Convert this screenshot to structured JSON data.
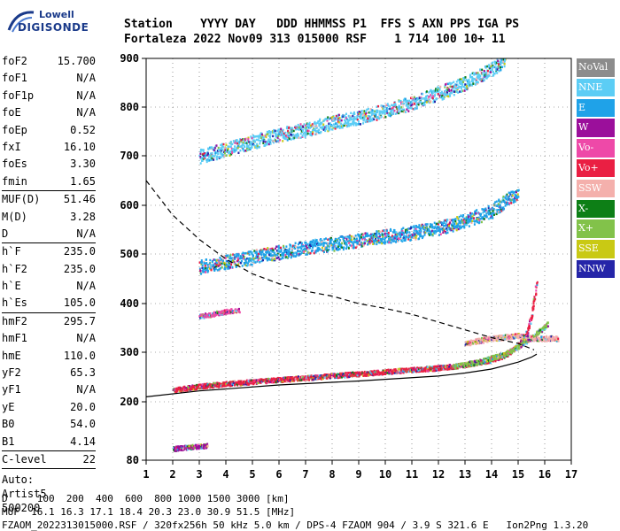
{
  "logo": {
    "line1": "Lowell",
    "line2": "DIGISONDE"
  },
  "header": {
    "line1": "Station    YYYY DAY   DDD HHMMSS P1  FFS S AXN PPS IGA PS",
    "line2": "Fortaleza 2022 Nov09 313 015000 RSF    1 714 100 10+ 11"
  },
  "params": {
    "group1": [
      {
        "name": "foF2",
        "value": "15.700"
      },
      {
        "name": "foF1",
        "value": "N/A"
      },
      {
        "name": "foF1p",
        "value": "N/A"
      },
      {
        "name": "foE",
        "value": "N/A"
      },
      {
        "name": "foEp",
        "value": "0.52"
      },
      {
        "name": "fxI",
        "value": "16.10"
      },
      {
        "name": "foEs",
        "value": "3.30"
      },
      {
        "name": "fmin",
        "value": "1.65"
      }
    ],
    "group2": [
      {
        "name": "MUF(D)",
        "value": "51.46"
      },
      {
        "name": "M(D)",
        "value": "3.28"
      },
      {
        "name": "D",
        "value": "N/A"
      }
    ],
    "group3": [
      {
        "name": "h`F",
        "value": "235.0"
      },
      {
        "name": "h`F2",
        "value": "235.0"
      },
      {
        "name": "h`E",
        "value": "N/A"
      },
      {
        "name": "h`Es",
        "value": "105.0"
      }
    ],
    "group4": [
      {
        "name": "hmF2",
        "value": "295.7"
      },
      {
        "name": "hmF1",
        "value": "N/A"
      },
      {
        "name": "hmE",
        "value": "110.0"
      },
      {
        "name": "yF2",
        "value": "65.3"
      },
      {
        "name": "yF1",
        "value": "N/A"
      },
      {
        "name": "yE",
        "value": "20.0"
      },
      {
        "name": "B0",
        "value": "54.0"
      },
      {
        "name": "B1",
        "value": "4.14"
      }
    ],
    "group5": [
      {
        "name": "C-level",
        "value": "22"
      }
    ],
    "autoscaling": [
      "Auto:",
      "Artist5",
      "500200"
    ]
  },
  "legend": [
    {
      "label": "NoVal",
      "color": "#8c8c8c"
    },
    {
      "label": "NNE",
      "color": "#5ccdf5"
    },
    {
      "label": "E",
      "color": "#1fa2e8"
    },
    {
      "label": "W",
      "color": "#9b0f9b"
    },
    {
      "label": "Vo-",
      "color": "#ee49a8"
    },
    {
      "label": "Vo+",
      "color": "#ea1f43"
    },
    {
      "label": "SSW",
      "color": "#f4b0ac"
    },
    {
      "label": "X-",
      "color": "#0d7f16"
    },
    {
      "label": "X+",
      "color": "#82c24a"
    },
    {
      "label": "SSE",
      "color": "#c9c914"
    },
    {
      "label": "NNW",
      "color": "#2525a8"
    }
  ],
  "footer": {
    "line1": "D     100  200  400  600  800 1000 1500 3000 [km]",
    "line2": "MUF  16.1 16.3 17.1 18.4 20.3 23.0 30.9 51.5 [MHz]",
    "line3": "FZAOM_2022313015000.RSF / 320fx256h 50 kHz 5.0 km / DPS-4 FZAOM 904 / 3.9 S 321.6 E   Ion2Png 1.3.20"
  },
  "chart_data": {
    "type": "scatter",
    "xlim": [
      1,
      17
    ],
    "ylim": [
      80,
      900
    ],
    "y_scale": "nonuniform",
    "x_ticks": [
      1,
      2,
      3,
      4,
      5,
      6,
      7,
      8,
      9,
      10,
      11,
      12,
      13,
      14,
      15,
      16,
      17
    ],
    "y_ticks": [
      80,
      200,
      300,
      400,
      500,
      600,
      700,
      800,
      900
    ],
    "traces": [
      {
        "name": "O-trace F2",
        "color": "#ea1f43",
        "points": [
          [
            2.0,
            225
          ],
          [
            3.0,
            233
          ],
          [
            4.0,
            238
          ],
          [
            5.0,
            242
          ],
          [
            6.0,
            246
          ],
          [
            7.0,
            250
          ],
          [
            8.0,
            254
          ],
          [
            9.0,
            258
          ],
          [
            10.0,
            262
          ],
          [
            11.0,
            266
          ],
          [
            12.0,
            270
          ],
          [
            13.0,
            276
          ],
          [
            14.0,
            286
          ],
          [
            14.5,
            296
          ],
          [
            15.0,
            315
          ],
          [
            15.3,
            340
          ],
          [
            15.5,
            380
          ],
          [
            15.7,
            450
          ]
        ]
      },
      {
        "name": "X-trace F2",
        "color": "#82c24a",
        "points": [
          [
            12.5,
            272
          ],
          [
            13.5,
            282
          ],
          [
            14.5,
            298
          ],
          [
            15.2,
            320
          ],
          [
            15.8,
            345
          ],
          [
            16.1,
            360
          ]
        ]
      },
      {
        "name": "2nd hop F2",
        "color": "#1fa2e8",
        "points": [
          [
            3.0,
            475
          ],
          [
            4.0,
            485
          ],
          [
            5.0,
            495
          ],
          [
            6.0,
            505
          ],
          [
            7.0,
            515
          ],
          [
            8.0,
            522
          ],
          [
            9.0,
            530
          ],
          [
            10.0,
            538
          ],
          [
            11.0,
            545
          ],
          [
            12.0,
            555
          ],
          [
            13.0,
            570
          ],
          [
            14.0,
            590
          ],
          [
            15.0,
            630
          ]
        ]
      },
      {
        "name": "3rd hop F2",
        "color": "#5ccdf5",
        "points": [
          [
            3.0,
            700
          ],
          [
            4.0,
            715
          ],
          [
            5.0,
            730
          ],
          [
            6.0,
            745
          ],
          [
            7.0,
            755
          ],
          [
            8.0,
            770
          ],
          [
            9.0,
            780
          ],
          [
            10.0,
            795
          ],
          [
            11.0,
            810
          ],
          [
            12.0,
            830
          ],
          [
            13.0,
            850
          ],
          [
            14.0,
            880
          ],
          [
            14.5,
            900
          ]
        ]
      },
      {
        "name": "Es trace",
        "color": "#9b0f9b",
        "points": [
          [
            2.0,
            105
          ],
          [
            2.5,
            108
          ],
          [
            3.0,
            110
          ],
          [
            3.3,
            112
          ]
        ]
      },
      {
        "name": "Es 2nd hop",
        "color": "#ee49a8",
        "points": [
          [
            3.0,
            375
          ],
          [
            3.5,
            380
          ],
          [
            4.0,
            385
          ],
          [
            4.5,
            388
          ]
        ]
      },
      {
        "name": "Spread F",
        "color": "#f4b0ac",
        "points": [
          [
            13.0,
            320
          ],
          [
            14.0,
            330
          ],
          [
            15.0,
            335
          ],
          [
            15.5,
            330
          ],
          [
            16.0,
            330
          ],
          [
            16.5,
            330
          ]
        ]
      }
    ],
    "profile_solid": [
      [
        1.0,
        210
      ],
      [
        3.0,
        222
      ],
      [
        6.0,
        234
      ],
      [
        9.0,
        242
      ],
      [
        12.0,
        252
      ],
      [
        13.0,
        258
      ],
      [
        14.0,
        266
      ],
      [
        15.0,
        280
      ],
      [
        15.5,
        290
      ],
      [
        15.7,
        296
      ]
    ],
    "profile_dashed": [
      [
        1.0,
        650
      ],
      [
        2.0,
        580
      ],
      [
        3.0,
        530
      ],
      [
        4.0,
        490
      ],
      [
        5.0,
        460
      ],
      [
        6.0,
        440
      ],
      [
        7.0,
        425
      ],
      [
        8.0,
        415
      ],
      [
        9.0,
        400
      ],
      [
        10.0,
        390
      ],
      [
        11.0,
        378
      ],
      [
        12.0,
        362
      ],
      [
        13.0,
        346
      ],
      [
        14.0,
        330
      ],
      [
        15.0,
        318
      ],
      [
        15.6,
        305
      ]
    ]
  }
}
